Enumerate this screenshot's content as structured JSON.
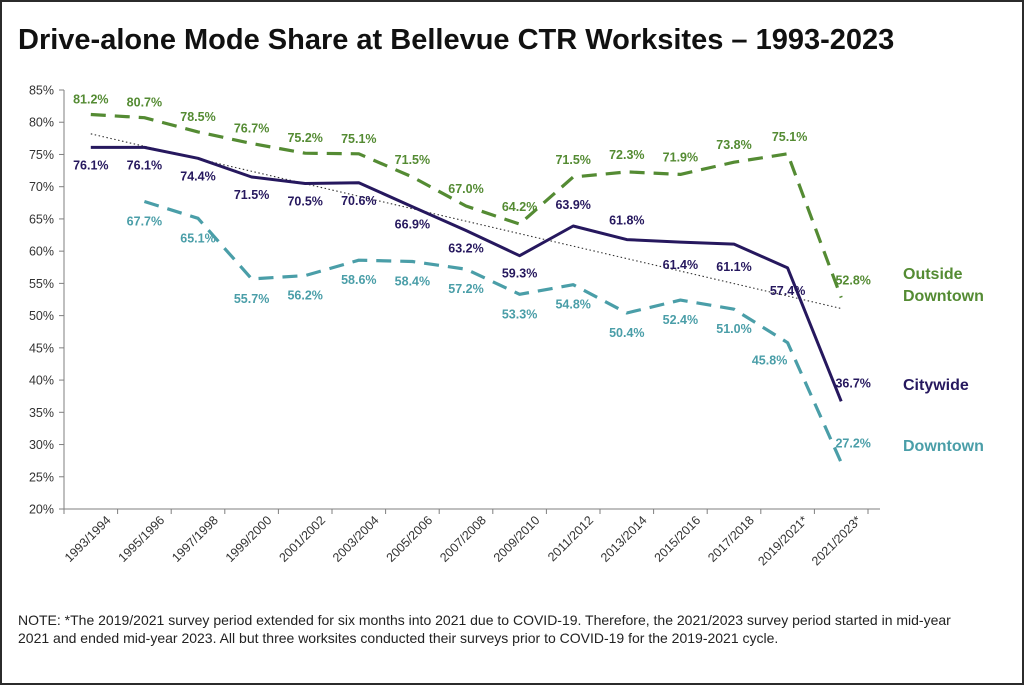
{
  "title": "Drive-alone Mode Share at Bellevue CTR Worksites – 1993-2023",
  "note": "NOTE: *The 2019/2021 survey period extended for six months into 2021 due to COVID-19. Therefore, the 2021/2023 survey period started in mid-year 2021 and ended mid-year 2023. All but three worksites conducted their surveys prior to COVID-19 for the 2019-2021 cycle.",
  "chart_data": {
    "type": "line",
    "categories": [
      "1993/1994",
      "1995/1996",
      "1997/1998",
      "1999/2000",
      "2001/2002",
      "2003/2004",
      "2005/2006",
      "2007/2008",
      "2009/2010",
      "2011/2012",
      "2013/2014",
      "2015/2016",
      "2017/2018",
      "2019/2021*",
      "2021/2023*"
    ],
    "ylim": [
      20,
      85
    ],
    "yticks": [
      20,
      25,
      30,
      35,
      40,
      45,
      50,
      55,
      60,
      65,
      70,
      75,
      80,
      85
    ],
    "ytick_labels": [
      "20%",
      "25%",
      "30%",
      "35%",
      "40%",
      "45%",
      "50%",
      "55%",
      "60%",
      "65%",
      "70%",
      "75%",
      "80%",
      "85%"
    ],
    "grid": false,
    "legend": "end-of-line labels",
    "series": [
      {
        "name": "Outside Downtown",
        "line_lines": [
          "Outside",
          "Downtown"
        ],
        "color": "#548b33",
        "dash": "dashed",
        "values": [
          81.2,
          80.7,
          78.5,
          76.7,
          75.2,
          75.1,
          71.5,
          67.0,
          64.2,
          71.5,
          72.3,
          71.9,
          73.8,
          75.1,
          52.8
        ],
        "labels": [
          "81.2%",
          "80.7%",
          "78.5%",
          "76.7%",
          "75.2%",
          "75.1%",
          "71.5%",
          "67.0%",
          "64.2%",
          "71.5%",
          "72.3%",
          "71.9%",
          "73.8%",
          "75.1%",
          "52.8%"
        ]
      },
      {
        "name": "Citywide",
        "line_lines": [
          "Citywide"
        ],
        "color": "#26185e",
        "dash": "solid",
        "values": [
          76.1,
          76.1,
          74.4,
          71.5,
          70.5,
          70.6,
          66.9,
          63.2,
          59.3,
          63.9,
          61.8,
          61.4,
          61.1,
          57.4,
          36.7
        ],
        "labels": [
          "76.1%",
          "76.1%",
          "74.4%",
          "71.5%",
          "70.5%",
          "70.6%",
          "66.9%",
          "63.2%",
          "59.3%",
          "63.9%",
          "61.8%",
          "61.4%",
          "61.1%",
          "57.4%",
          "36.7%"
        ]
      },
      {
        "name": "Downtown",
        "line_lines": [
          "Downtown"
        ],
        "color": "#4a9ea8",
        "dash": "dashed",
        "values": [
          null,
          67.7,
          65.1,
          55.7,
          56.2,
          58.6,
          58.4,
          57.2,
          53.3,
          54.8,
          50.4,
          52.4,
          51.0,
          45.8,
          27.2
        ],
        "labels": [
          null,
          "67.7%",
          "65.1%",
          "55.7%",
          "56.2%",
          "58.6%",
          "58.4%",
          "57.2%",
          "53.3%",
          "54.8%",
          "50.4%",
          "52.4%",
          "51.0%",
          "45.8%",
          "27.2%"
        ]
      }
    ],
    "trendline": {
      "style": "dotted",
      "color": "#333333",
      "start": 78.2,
      "end": 51.1,
      "applies_to": "Citywide"
    }
  }
}
